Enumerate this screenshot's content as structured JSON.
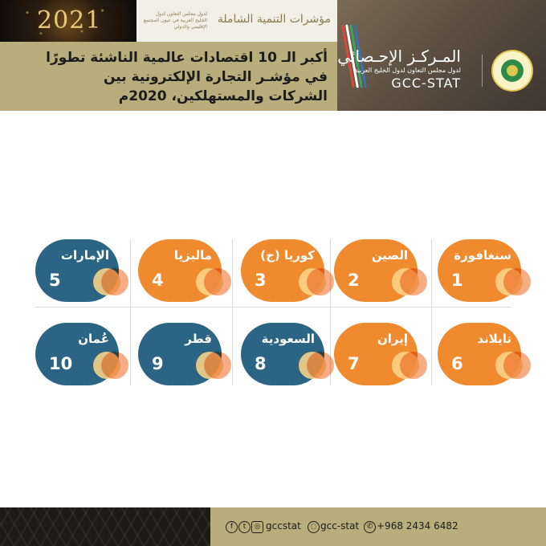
{
  "header": {
    "banner_year": "2021",
    "banner_subtitle": "لدول مجلس التعاون لدول الخليج العربية في عيون المجتمع الإقليمي والدولي",
    "tagline": "مؤشرات التنمية الشاملة",
    "title_lines": [
      "أكبر الـ 10 اقتصادات عالمية الناشئة تطورًا",
      "في مؤشـر التجارة الإلكترونية بين",
      "الشركات والمستهلكين، 2020م"
    ]
  },
  "brand": {
    "name_ar": "المـركـز الإحـصائي",
    "subtitle_ar": "لدول مجلس التعاون لدول الخليج العربية",
    "name_en": "GCC-STAT"
  },
  "ranking": [
    {
      "rank": "1",
      "country": "سنغافورة",
      "color": "orange"
    },
    {
      "rank": "2",
      "country": "الصين",
      "color": "orange"
    },
    {
      "rank": "3",
      "country": "كوريا (ج)",
      "color": "orange"
    },
    {
      "rank": "4",
      "country": "ماليزيا",
      "color": "orange"
    },
    {
      "rank": "5",
      "country": "الإمارات",
      "color": "blue"
    },
    {
      "rank": "6",
      "country": "تايلاند",
      "color": "orange"
    },
    {
      "rank": "7",
      "country": "إيران",
      "color": "orange"
    },
    {
      "rank": "8",
      "country": "السعودية",
      "color": "blue"
    },
    {
      "rank": "9",
      "country": "قطر",
      "color": "blue"
    },
    {
      "rank": "10",
      "country": "عُمان",
      "color": "blue"
    }
  ],
  "colors": {
    "orange": "#ef8a2e",
    "blue": "#2c6583",
    "gold": "#b9ad7c"
  },
  "footer": {
    "social_handle": "gccstat",
    "web_handle": "gcc-stat",
    "phone": "+968 2434 6482",
    "icons": [
      "facebook-icon",
      "twitter-icon",
      "instagram-icon",
      "youtube-icon",
      "web-icon",
      "whatsapp-icon"
    ]
  }
}
